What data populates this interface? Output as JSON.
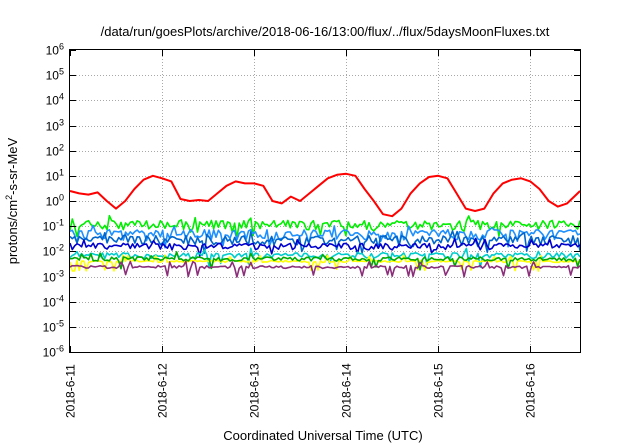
{
  "chart_data": {
    "type": "line",
    "title": "/data/run/goesPlots/archive/2018-06-16/13:00/flux/../flux/5daysMoonFluxes.txt",
    "xlabel": "Coordinated Universal Time (UTC)",
    "ylabel": {
      "pre": "protons/cm",
      "sup": "2",
      "post": "-s-sr-MeV"
    },
    "y_scale": "log",
    "ylim": [
      1e-06,
      1000000.0
    ],
    "xlim": [
      "2018-06-11 00:00",
      "2018-06-16 13:00"
    ],
    "grid": true,
    "legend": "none",
    "x_ticks": [
      {
        "value": 0,
        "label": "2018-6-11"
      },
      {
        "value": 1,
        "label": "2018-6-12"
      },
      {
        "value": 2,
        "label": "2018-6-13"
      },
      {
        "value": 3,
        "label": "2018-6-14"
      },
      {
        "value": 4,
        "label": "2018-6-15"
      },
      {
        "value": 5,
        "label": "2018-6-16"
      }
    ],
    "y_ticks": [
      {
        "exp": -6,
        "base": "10",
        "sup": "-6"
      },
      {
        "exp": -5,
        "base": "10",
        "sup": "-5"
      },
      {
        "exp": -4,
        "base": "10",
        "sup": "-4"
      },
      {
        "exp": -3,
        "base": "10",
        "sup": "-3"
      },
      {
        "exp": -2,
        "base": "10",
        "sup": "-2"
      },
      {
        "exp": -1,
        "base": "10",
        "sup": "-1"
      },
      {
        "exp": 0,
        "base": "10",
        "sup": "0"
      },
      {
        "exp": 1,
        "base": "10",
        "sup": "1"
      },
      {
        "exp": 2,
        "base": "10",
        "sup": "2"
      },
      {
        "exp": 3,
        "base": "10",
        "sup": "3"
      },
      {
        "exp": 4,
        "base": "10",
        "sup": "4"
      },
      {
        "exp": 5,
        "base": "10",
        "sup": "5"
      },
      {
        "exp": 6,
        "base": "10",
        "sup": "6"
      }
    ],
    "series": [
      {
        "color": "#ff0000",
        "x": [
          0.0,
          0.1,
          0.2,
          0.3,
          0.4,
          0.5,
          0.6,
          0.7,
          0.8,
          0.9,
          1.0,
          1.1,
          1.2,
          1.3,
          1.4,
          1.5,
          1.6,
          1.7,
          1.8,
          1.9,
          2.0,
          2.1,
          2.2,
          2.3,
          2.4,
          2.5,
          2.6,
          2.7,
          2.8,
          2.9,
          3.0,
          3.1,
          3.2,
          3.3,
          3.4,
          3.5,
          3.6,
          3.7,
          3.8,
          3.9,
          4.0,
          4.1,
          4.2,
          4.3,
          4.4,
          4.5,
          4.6,
          4.7,
          4.8,
          4.9,
          5.0,
          5.1,
          5.2,
          5.3,
          5.4,
          5.5,
          5.54
        ],
        "y": [
          2.5,
          2.0,
          1.8,
          2.2,
          1.0,
          0.5,
          1.0,
          3.0,
          7.0,
          10.0,
          8.0,
          6.0,
          1.2,
          1.0,
          1.1,
          1.0,
          2.0,
          4.0,
          6.0,
          5.0,
          5.0,
          4.0,
          1.0,
          0.8,
          1.5,
          1.0,
          2.0,
          4.0,
          8.0,
          11.0,
          12.0,
          10.0,
          3.0,
          1.0,
          0.3,
          0.25,
          0.5,
          2.0,
          5.0,
          9.0,
          10.0,
          8.0,
          2.0,
          0.5,
          0.4,
          0.5,
          2.0,
          5.0,
          7.0,
          8.0,
          6.0,
          3.0,
          1.0,
          0.6,
          0.8,
          1.8,
          2.5
        ]
      },
      {
        "color": "#00ee00",
        "base": 0.12,
        "amp": 0.25,
        "seed": 11
      },
      {
        "color": "#1e90ff",
        "base": 0.05,
        "amp": 0.28,
        "seed": 23
      },
      {
        "color": "#0066cc",
        "base": 0.03,
        "amp": 0.25,
        "seed": 37
      },
      {
        "color": "#0000cc",
        "base": 0.016,
        "amp": 0.18,
        "seed": 41
      },
      {
        "color": "#00cccc",
        "base": 0.007,
        "amp": 0.16,
        "seed": 53
      },
      {
        "color": "#ffff00",
        "base": 0.004,
        "amp": 0.06,
        "seed": 67
      },
      {
        "color": "#00aa00",
        "base": 0.005,
        "amp": 0.12,
        "seed": 71
      },
      {
        "color": "#8b2f7a",
        "base": 0.0024,
        "amp": 0.08,
        "seed": 83
      }
    ]
  }
}
